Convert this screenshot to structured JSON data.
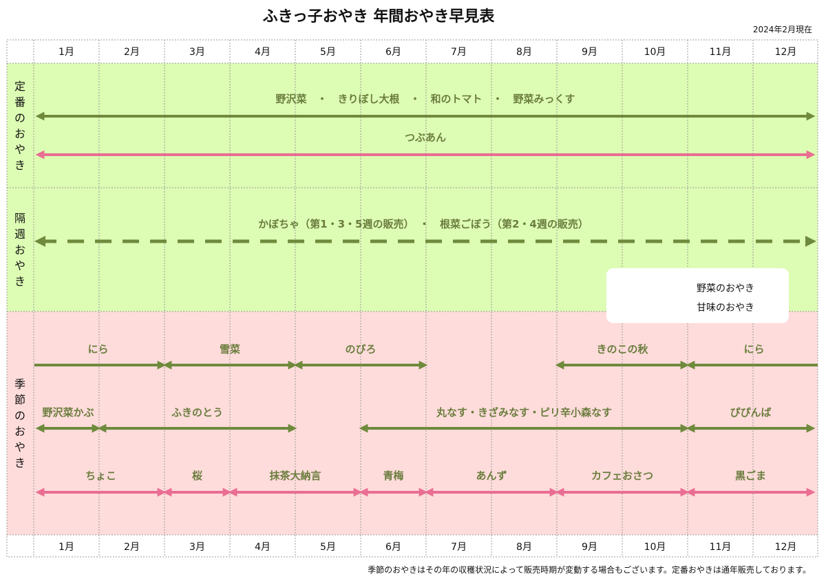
{
  "title": "ふきっ子おやき 年間おやき早見表",
  "as_of": "2024年2月現在",
  "footer_note": "季節のおやきはその年の収穫状況によって販売時期が変動する場合もございます。定番おやきは通年販売しております。",
  "colors": {
    "vegetable": "#6f8a3c",
    "sweet": "#ea6d92",
    "green_band": "#ddfcb4",
    "pink_band": "#fedcdb"
  },
  "chart_data": {
    "type": "timeline",
    "title": "ふきっ子おやき 年間おやき早見表",
    "months": [
      "1月",
      "2月",
      "3月",
      "4月",
      "5月",
      "6月",
      "7月",
      "8月",
      "9月",
      "10月",
      "11月",
      "12月"
    ],
    "legend": [
      {
        "label": "野菜のおやき",
        "type": "vegetable"
      },
      {
        "label": "甘味のおやき",
        "type": "sweet"
      }
    ],
    "legend_position": "right",
    "sections": [
      {
        "name": "定番のおやき",
        "items": [
          {
            "label": "野沢菜　・　きりぼし大根　・　和のトマト　・　野菜みっくす",
            "type": "vegetable",
            "start": 1,
            "end": 12
          },
          {
            "label": "つぶあん",
            "type": "sweet",
            "start": 1,
            "end": 12
          }
        ]
      },
      {
        "name": "隔週おやき",
        "items": [
          {
            "label": "かぼちゃ（第1・3・5週の販売）　・　根菜ごぼう（第2・4週の販売）",
            "type": "vegetable",
            "start": 1,
            "end": 12,
            "dashed": true
          }
        ]
      },
      {
        "name": "季節のおやき",
        "items": [
          {
            "label": "にら",
            "type": "vegetable",
            "start": 1,
            "end": 2,
            "row": 0
          },
          {
            "label": "雪菜",
            "type": "vegetable",
            "start": 3,
            "end": 4,
            "row": 0
          },
          {
            "label": "のびろ",
            "type": "vegetable",
            "start": 5,
            "end": 6,
            "row": 0
          },
          {
            "label": "きのこの秋",
            "type": "vegetable",
            "start": 9,
            "end": 10,
            "row": 0
          },
          {
            "label": "にら",
            "type": "vegetable",
            "start": 11,
            "end": 12,
            "row": 0
          },
          {
            "label": "野沢菜かぶ",
            "type": "vegetable",
            "start": 1,
            "end": 1,
            "row": 1
          },
          {
            "label": "ふきのとう",
            "type": "vegetable",
            "start": 2,
            "end": 4,
            "row": 1
          },
          {
            "label": "丸なす・きざみなす・ピリ辛小森なす",
            "type": "vegetable",
            "start": 6,
            "end": 10,
            "row": 1
          },
          {
            "label": "ぴぴんば",
            "type": "vegetable",
            "start": 11,
            "end": 12,
            "row": 1
          },
          {
            "label": "ちょこ",
            "type": "sweet",
            "start": 1,
            "end": 2,
            "row": 2
          },
          {
            "label": "桜",
            "type": "sweet",
            "start": 3,
            "end": 3,
            "row": 2
          },
          {
            "label": "抹茶大納言",
            "type": "sweet",
            "start": 4,
            "end": 5,
            "row": 2
          },
          {
            "label": "青梅",
            "type": "sweet",
            "start": 6,
            "end": 6,
            "row": 2
          },
          {
            "label": "あんず",
            "type": "sweet",
            "start": 7,
            "end": 8,
            "row": 2
          },
          {
            "label": "カフェおさつ",
            "type": "sweet",
            "start": 9,
            "end": 10,
            "row": 2
          },
          {
            "label": "黒ごま",
            "type": "sweet",
            "start": 11,
            "end": 12,
            "row": 2
          }
        ]
      }
    ]
  }
}
